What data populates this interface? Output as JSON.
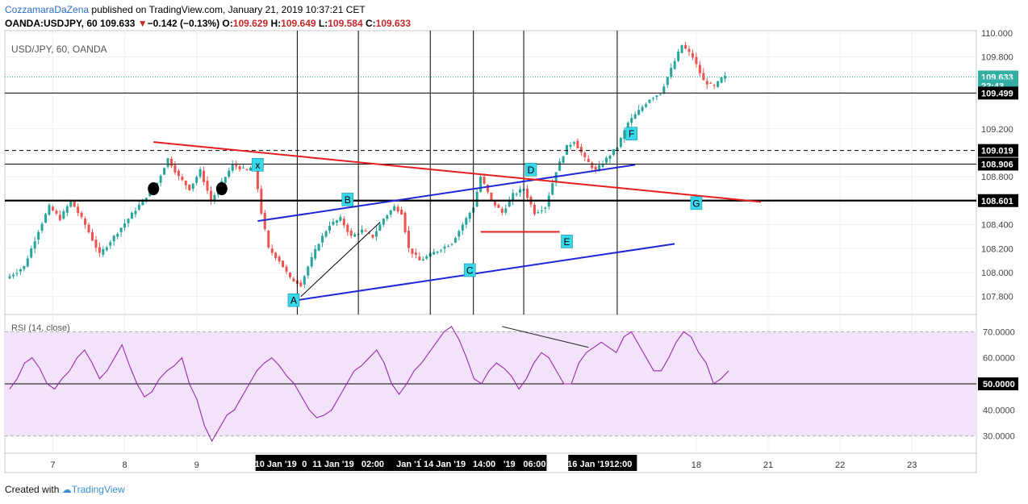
{
  "header": {
    "author": "CozzamaraDaZena",
    "published": "published on TradingView.com, January 21, 2019 10:37:21 CET",
    "symbol": "OANDA:USDJPY, 60",
    "last": "109.633",
    "change": "−0.142 (−0.13%)",
    "o_label": "O:",
    "o_val": "109.629",
    "h_label": "H:",
    "h_val": "109.649",
    "l_label": "L:",
    "l_val": "109.584",
    "c_label": "C:",
    "c_val": "109.633"
  },
  "footer": {
    "created_with": "Created with",
    "brand": "TradingView"
  },
  "colors": {
    "up": "#26a69a",
    "down": "#ef5350",
    "rsi": "#9c27b0",
    "rsi_band": "#f3e3fa",
    "blue_channel": "#1f27d6",
    "red_trend": "#e61e1e",
    "marker": "#37d7ec",
    "price_tag": "#33b0a3"
  },
  "chart_data": [
    {
      "type": "candlestick",
      "title": "USD/JPY, 60, OANDA",
      "ylim": [
        107.65,
        110.02
      ],
      "y_ticks": [
        "110.000",
        "109.800",
        "109.200",
        "108.800",
        "108.400",
        "108.200",
        "108.000",
        "107.800"
      ],
      "y_tick_values": [
        110.0,
        109.8,
        109.2,
        108.8,
        108.4,
        108.2,
        108.0,
        107.8
      ],
      "price_labels": [
        {
          "text": "109.633",
          "value": 109.633,
          "kind": "last"
        },
        {
          "text": "22:43",
          "value": 109.56,
          "kind": "countdown"
        },
        {
          "text": "109.499",
          "value": 109.499,
          "kind": "level"
        },
        {
          "text": "109.019",
          "value": 109.019,
          "kind": "level"
        },
        {
          "text": "108.906",
          "value": 108.906,
          "kind": "level"
        },
        {
          "text": "108.601",
          "value": 108.601,
          "kind": "level"
        }
      ],
      "horizontal_levels": [
        109.499,
        109.019,
        108.906,
        108.601
      ],
      "price_path": [
        [
          0,
          107.95
        ],
        [
          5,
          108.05
        ],
        [
          9,
          108.35
        ],
        [
          12,
          108.55
        ],
        [
          15,
          108.45
        ],
        [
          18,
          108.6
        ],
        [
          22,
          108.4
        ],
        [
          26,
          108.15
        ],
        [
          30,
          108.3
        ],
        [
          34,
          108.45
        ],
        [
          38,
          108.6
        ],
        [
          42,
          108.75
        ],
        [
          45,
          108.95
        ],
        [
          48,
          108.8
        ],
        [
          51,
          108.7
        ],
        [
          54,
          108.85
        ],
        [
          57,
          108.6
        ],
        [
          60,
          108.75
        ],
        [
          63,
          108.9
        ],
        [
          67,
          108.85
        ],
        [
          69,
          108.9
        ],
        [
          71,
          108.5
        ],
        [
          73,
          108.2
        ],
        [
          76,
          108.1
        ],
        [
          79,
          107.95
        ],
        [
          82,
          107.9
        ],
        [
          84,
          108.05
        ],
        [
          87,
          108.25
        ],
        [
          90,
          108.4
        ],
        [
          93,
          108.45
        ],
        [
          96,
          108.3
        ],
        [
          99,
          108.35
        ],
        [
          102,
          108.3
        ],
        [
          105,
          108.45
        ],
        [
          108,
          108.55
        ],
        [
          110,
          108.5
        ],
        [
          112,
          108.2
        ],
        [
          115,
          108.1
        ],
        [
          118,
          108.15
        ],
        [
          121,
          108.2
        ],
        [
          124,
          108.25
        ],
        [
          127,
          108.4
        ],
        [
          130,
          108.55
        ],
        [
          132,
          108.8
        ],
        [
          135,
          108.6
        ],
        [
          138,
          108.5
        ],
        [
          141,
          108.65
        ],
        [
          144,
          108.7
        ],
        [
          147,
          108.5
        ],
        [
          150,
          108.55
        ],
        [
          153,
          108.85
        ],
        [
          156,
          109.05
        ],
        [
          158,
          109.1
        ],
        [
          161,
          108.95
        ],
        [
          164,
          108.85
        ],
        [
          167,
          108.95
        ],
        [
          170,
          109.05
        ],
        [
          173,
          109.25
        ],
        [
          176,
          109.35
        ],
        [
          179,
          109.45
        ],
        [
          182,
          109.5
        ],
        [
          185,
          109.7
        ],
        [
          188,
          109.9
        ],
        [
          191,
          109.8
        ],
        [
          194,
          109.6
        ],
        [
          197,
          109.55
        ],
        [
          199,
          109.62
        ],
        [
          200,
          109.633
        ]
      ],
      "annotations": [
        {
          "text": "A",
          "bar": 79,
          "value": 107.77
        },
        {
          "text": "B",
          "bar": 94,
          "value": 108.61
        },
        {
          "text": "C",
          "bar": 128,
          "value": 108.02
        },
        {
          "text": "D",
          "bar": 145,
          "value": 108.86
        },
        {
          "text": "E",
          "bar": 155,
          "value": 108.26
        },
        {
          "text": "F",
          "bar": 173,
          "value": 109.16
        },
        {
          "text": "G",
          "bar": 191,
          "value": 108.58
        },
        {
          "text": "x",
          "bar": 69,
          "value": 108.9
        }
      ],
      "vertical_lines_bar": [
        80,
        97,
        117,
        129,
        143,
        169
      ],
      "blue_channel": [
        [
          [
            69,
            108.43
          ],
          [
            174,
            108.9
          ]
        ],
        [
          [
            80,
            107.77
          ],
          [
            185,
            108.24
          ]
        ]
      ],
      "red_trendline": [
        [
          40,
          109.09
        ],
        [
          209,
          108.59
        ]
      ],
      "red_segment": [
        [
          131,
          108.34
        ],
        [
          153,
          108.34
        ]
      ],
      "black_segment": [
        [
          81,
          107.8
        ],
        [
          103,
          108.42
        ]
      ],
      "dots": [
        [
          40,
          108.7
        ],
        [
          59,
          108.7
        ]
      ],
      "visible_bars": 200
    },
    {
      "type": "line",
      "title": "RSI (14, close)",
      "ylim": [
        24,
        76
      ],
      "y_ticks": [
        "70.0000",
        "60.0000",
        "50.0000",
        "40.0000",
        "30.0000"
      ],
      "y_tick_values": [
        70,
        60,
        50,
        40,
        30
      ],
      "band": [
        30,
        70
      ],
      "midline": 50,
      "last_value_label": "50.0000",
      "values": [
        48,
        52,
        58,
        60,
        56,
        50,
        48,
        52,
        55,
        60,
        63,
        58,
        52,
        55,
        60,
        65,
        57,
        50,
        45,
        47,
        52,
        55,
        57,
        60,
        50,
        44,
        34,
        28,
        33,
        38,
        40,
        45,
        50,
        55,
        58,
        60,
        57,
        53,
        50,
        45,
        40,
        37,
        38,
        40,
        45,
        50,
        55,
        57,
        60,
        63,
        58,
        50,
        46,
        50,
        55,
        58,
        62,
        66,
        70,
        72,
        67,
        60,
        52,
        50,
        55,
        58,
        56,
        53,
        48,
        52,
        58,
        62,
        60,
        55,
        50,
        50,
        58,
        62,
        64,
        66,
        64,
        62,
        68,
        70,
        65,
        60,
        55,
        55,
        60,
        66,
        70,
        68,
        62,
        58,
        50,
        52,
        55
      ]
    },
    {
      "type": "axis",
      "x_ticks": [
        {
          "text": "7",
          "bar": 12
        },
        {
          "text": "8",
          "bar": 32
        },
        {
          "text": "9",
          "bar": 52
        },
        {
          "text": "18",
          "bar": 191
        },
        {
          "text": "21",
          "bar": 211
        },
        {
          "text": "22",
          "bar": 231
        },
        {
          "text": "23",
          "bar": 251
        }
      ],
      "x_highlight_labels": [
        {
          "text": "10 Jan '19",
          "bar": 74
        },
        {
          "text": "0",
          "bar": 82
        },
        {
          "text": "11 Jan '19",
          "bar": 90
        },
        {
          "text": "02:00",
          "bar": 101
        },
        {
          "text": "Jan '1́",
          "bar": 111
        },
        {
          "text": "14 Jan '19",
          "bar": 121
        },
        {
          "text": "14:00",
          "bar": 132
        },
        {
          "text": "'19",
          "bar": 139
        },
        {
          "text": "06:00",
          "bar": 146
        },
        {
          "text": "16 Jan '19",
          "bar": 161
        },
        {
          "text": "12:00",
          "bar": 170
        }
      ]
    }
  ]
}
